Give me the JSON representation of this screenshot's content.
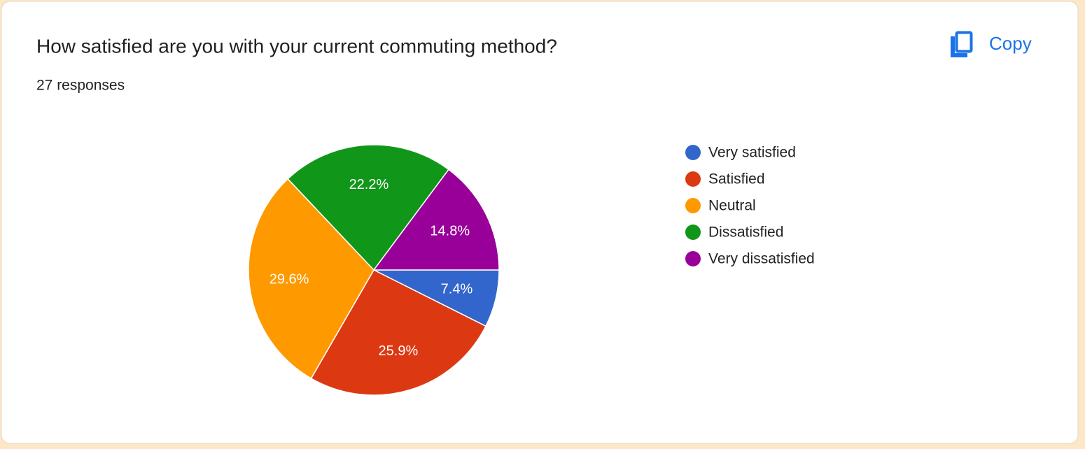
{
  "chart_data": {
    "type": "pie",
    "title": "How satisfied are you with your current commuting method?",
    "subtitle": "27 responses",
    "categories": [
      "Very satisfied",
      "Satisfied",
      "Neutral",
      "Dissatisfied",
      "Very dissatisfied"
    ],
    "values": [
      7.4,
      25.9,
      29.6,
      22.2,
      14.8
    ],
    "value_labels": [
      "7.4%",
      "25.9%",
      "29.6%",
      "22.2%",
      "14.8%"
    ],
    "colors": [
      "#3366cc",
      "#dc3912",
      "#ff9900",
      "#109618",
      "#990099"
    ],
    "legend": "right"
  },
  "copy_button": "Copy"
}
